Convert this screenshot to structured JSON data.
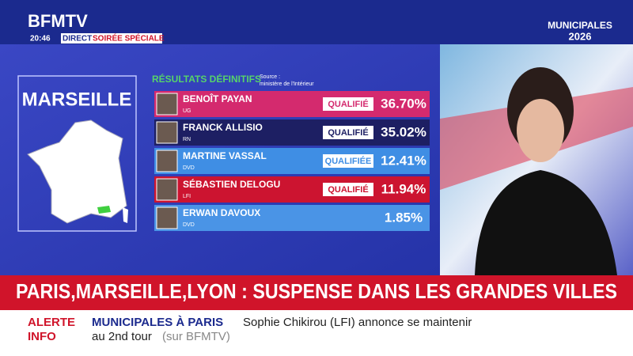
{
  "header": {
    "logo": "BFMTV",
    "time": "20:46",
    "live": "DIRECT",
    "show": "SOIRÉE SPÉCIALE",
    "event_logo": "MUNICIPALES",
    "event_year": "2026"
  },
  "city": "MARSEILLE",
  "results": {
    "title": "RÉSULTATS DÉFINITIFS",
    "source_label": "Source :",
    "source": "ministère de l'Intérieur",
    "rows": [
      {
        "name": "BENOÎT PAYAN",
        "party": "UG",
        "status": "QUALIFIÉ",
        "result": "36.70%",
        "color": "#d42a6e"
      },
      {
        "name": "FRANCK ALLISIO",
        "party": "RN",
        "status": "QUALIFIÉ",
        "result": "35.02%",
        "color": "#1d1f63"
      },
      {
        "name": "MARTINE VASSAL",
        "party": "DVD",
        "status": "QUALIFIÉE",
        "result": "12.41%",
        "color": "#3f8ee4"
      },
      {
        "name": "SÉBASTIEN DELOGU",
        "party": "LFI",
        "status": "QUALIFIÉ",
        "result": "11.94%",
        "color": "#cc1430"
      },
      {
        "name": "ERWAN DAVOUX",
        "party": "DVD",
        "status": null,
        "result": "1.85%",
        "color": "#4a94e6"
      }
    ]
  },
  "headline": "PARIS,MARSEILLE,LYON : SUSPENSE DANS LES GRANDES VILLES",
  "ticker": {
    "label_1": "ALERTE",
    "label_2": "INFO",
    "topic": "MUNICIPALES À PARIS",
    "text_1": "Sophie Chikirou (LFI) annonce se maintenir",
    "text_2": "au 2nd tour",
    "source": "(sur BFMTV)"
  }
}
